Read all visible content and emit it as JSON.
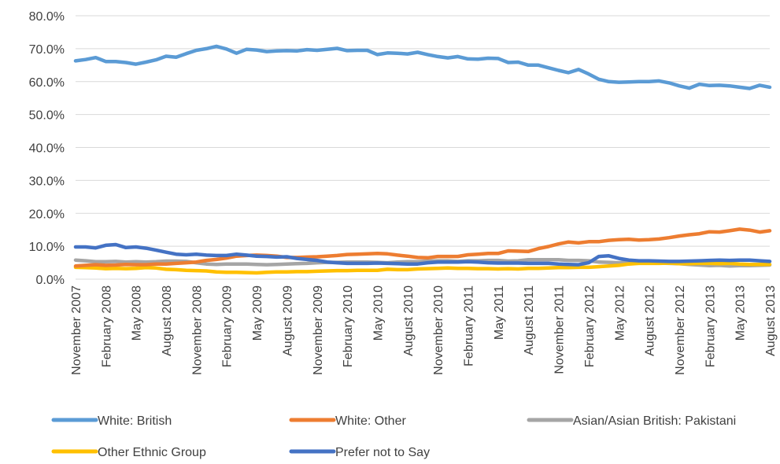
{
  "chart_data": {
    "type": "line",
    "title": "",
    "xlabel": "",
    "ylabel": "",
    "ylim": [
      0,
      80
    ],
    "y_tick_labels": [
      "0.0%",
      "10.0%",
      "20.0%",
      "30.0%",
      "40.0%",
      "50.0%",
      "60.0%",
      "70.0%",
      "80.0%"
    ],
    "y_tick_values": [
      0,
      10,
      20,
      30,
      40,
      50,
      60,
      70,
      80
    ],
    "grid": "horizontal",
    "legend_position": "bottom",
    "x": [
      "November 2007",
      "December 2007",
      "January 2008",
      "February 2008",
      "March 2008",
      "April 2008",
      "May 2008",
      "June 2008",
      "July 2008",
      "August 2008",
      "September 2008",
      "October 2008",
      "November 2008",
      "December 2008",
      "January 2009",
      "February 2009",
      "March 2009",
      "April 2009",
      "May 2009",
      "June 2009",
      "July 2009",
      "August 2009",
      "September 2009",
      "October 2009",
      "November 2009",
      "December 2009",
      "January 2010",
      "February 2010",
      "March 2010",
      "April 2010",
      "May 2010",
      "June 2010",
      "July 2010",
      "August 2010",
      "September 2010",
      "October 2010",
      "November 2010",
      "December 2010",
      "January 2011",
      "February 2011",
      "March 2011",
      "April 2011",
      "May 2011",
      "June 2011",
      "July 2011",
      "August 2011",
      "September 2011",
      "October 2011",
      "November 2011",
      "December 2011",
      "January 2012",
      "February 2012",
      "March 2012",
      "April 2012",
      "May 2012",
      "June 2012",
      "July 2012",
      "August 2012",
      "September 2012",
      "October 2012",
      "November 2012",
      "December 2012",
      "January 2013",
      "February 2013",
      "March 2013",
      "April 2013",
      "May 2013",
      "June 2013",
      "July 2013",
      "August 2013"
    ],
    "x_tick_labels": [
      "November 2007",
      "February 2008",
      "May 2008",
      "August 2008",
      "November 2008",
      "February 2009",
      "May 2009",
      "August 2009",
      "November 2009",
      "February 2010",
      "May 2010",
      "August 2010",
      "November 2010",
      "February 2011",
      "May 2011",
      "August 2011",
      "November 2011",
      "February 2012",
      "May 2012",
      "August 2012",
      "November 2012",
      "February 2013",
      "May 2013",
      "August 2013"
    ],
    "series": [
      {
        "name": "White: British",
        "color": "#5b9bd5",
        "values": [
          66.3,
          66.7,
          67.3,
          66.1,
          66.1,
          65.8,
          65.3,
          65.9,
          66.6,
          67.7,
          67.4,
          68.5,
          69.5,
          70.0,
          70.7,
          69.9,
          68.6,
          69.8,
          69.6,
          69.1,
          69.3,
          69.4,
          69.3,
          69.7,
          69.5,
          69.8,
          70.1,
          69.4,
          69.5,
          69.5,
          68.2,
          68.7,
          68.6,
          68.4,
          68.9,
          68.2,
          67.6,
          67.2,
          67.6,
          66.9,
          66.8,
          67.1,
          67.0,
          65.8,
          65.9,
          65.0,
          65.0,
          64.2,
          63.4,
          62.7,
          63.7,
          62.3,
          60.7,
          60.0,
          59.8,
          59.9,
          60.0,
          60.0,
          60.2,
          59.6,
          58.7,
          58.0,
          59.2,
          58.8,
          58.9,
          58.7,
          58.3,
          57.9,
          58.9,
          58.3
        ]
      },
      {
        "name": "White: Other",
        "color": "#ed7d31",
        "values": [
          4.0,
          4.2,
          4.4,
          4.2,
          4.3,
          4.5,
          4.4,
          4.4,
          4.6,
          4.6,
          4.8,
          5.0,
          5.2,
          5.7,
          6.0,
          6.4,
          7.0,
          7.2,
          7.3,
          7.2,
          7.0,
          6.6,
          6.6,
          6.7,
          6.8,
          7.0,
          7.2,
          7.5,
          7.6,
          7.7,
          7.8,
          7.7,
          7.3,
          7.0,
          6.6,
          6.5,
          6.9,
          6.9,
          6.9,
          7.4,
          7.6,
          7.8,
          7.8,
          8.6,
          8.5,
          8.4,
          9.3,
          9.9,
          10.7,
          11.3,
          11.0,
          11.4,
          11.4,
          11.8,
          12.0,
          12.1,
          11.9,
          12.0,
          12.2,
          12.6,
          13.1,
          13.5,
          13.8,
          14.4,
          14.3,
          14.7,
          15.2,
          14.9,
          14.3,
          14.7
        ]
      },
      {
        "name": "Asian/Asian British: Pakistani",
        "color": "#a5a5a5",
        "values": [
          5.8,
          5.6,
          5.3,
          5.3,
          5.4,
          5.2,
          5.3,
          5.2,
          5.3,
          5.5,
          5.5,
          5.4,
          5.0,
          4.6,
          4.5,
          4.6,
          4.6,
          4.6,
          4.5,
          4.4,
          4.5,
          4.6,
          4.7,
          4.8,
          5.0,
          5.1,
          5.1,
          5.2,
          5.2,
          5.2,
          5.1,
          5.0,
          5.2,
          5.3,
          5.3,
          5.5,
          5.6,
          5.6,
          5.4,
          5.6,
          5.6,
          5.7,
          5.7,
          5.5,
          5.6,
          5.9,
          5.9,
          5.9,
          5.9,
          5.7,
          5.7,
          5.6,
          5.2,
          5.1,
          5.0,
          5.2,
          5.1,
          5.0,
          4.9,
          4.8,
          4.7,
          4.5,
          4.3,
          4.1,
          4.2,
          4.0,
          4.1,
          4.1,
          4.2,
          4.3
        ]
      },
      {
        "name": "Other Ethnic Group",
        "color": "#ffc000",
        "values": [
          3.6,
          3.5,
          3.4,
          3.2,
          3.3,
          3.2,
          3.3,
          3.5,
          3.4,
          3.0,
          2.9,
          2.7,
          2.6,
          2.5,
          2.2,
          2.1,
          2.1,
          2.0,
          1.9,
          2.1,
          2.2,
          2.2,
          2.3,
          2.3,
          2.4,
          2.5,
          2.6,
          2.6,
          2.7,
          2.7,
          2.7,
          3.0,
          2.9,
          2.9,
          3.1,
          3.2,
          3.3,
          3.4,
          3.3,
          3.3,
          3.2,
          3.2,
          3.1,
          3.2,
          3.1,
          3.3,
          3.3,
          3.4,
          3.5,
          3.5,
          3.6,
          3.6,
          3.8,
          4.0,
          4.2,
          4.6,
          4.8,
          4.8,
          4.8,
          4.9,
          4.7,
          4.7,
          4.8,
          4.8,
          4.7,
          4.8,
          4.6,
          4.5,
          4.5,
          4.5
        ]
      },
      {
        "name": "Prefer not to Say",
        "color": "#4472c4",
        "values": [
          9.8,
          9.8,
          9.5,
          10.3,
          10.5,
          9.6,
          9.8,
          9.4,
          8.8,
          8.2,
          7.6,
          7.4,
          7.6,
          7.3,
          7.2,
          7.2,
          7.6,
          7.3,
          7.0,
          6.9,
          6.7,
          6.8,
          6.3,
          6.0,
          5.7,
          5.2,
          5.0,
          4.8,
          4.8,
          4.8,
          4.9,
          4.8,
          4.7,
          4.6,
          4.6,
          5.0,
          5.2,
          5.2,
          5.2,
          5.3,
          5.2,
          5.0,
          4.9,
          4.9,
          4.9,
          4.8,
          4.8,
          4.8,
          4.6,
          4.5,
          4.4,
          5.0,
          6.9,
          7.1,
          6.3,
          5.8,
          5.6,
          5.6,
          5.5,
          5.4,
          5.4,
          5.5,
          5.6,
          5.7,
          5.8,
          5.7,
          5.8,
          5.8,
          5.6,
          5.4
        ]
      }
    ]
  }
}
